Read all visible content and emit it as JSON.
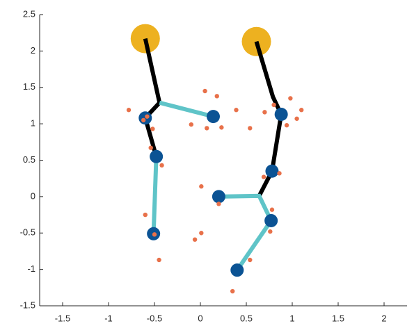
{
  "chart_data": {
    "type": "scatter",
    "xlim": [
      -1.75,
      2.25
    ],
    "ylim": [
      -1.5,
      2.5
    ],
    "xticks": [
      -1.5,
      -1,
      -0.5,
      0,
      0.5,
      1,
      1.5,
      2
    ],
    "yticks": [
      -1.5,
      -1,
      -0.5,
      0,
      0.5,
      1,
      1.5,
      2,
      2.5
    ],
    "grid": false,
    "series": [
      {
        "kind": "scatter",
        "color": "#edb120",
        "x": [
          -0.6,
          0.61
        ],
        "y": [
          2.17,
          2.13
        ]
      },
      {
        "kind": "line",
        "color": "#000000",
        "x": [
          -0.6,
          -0.445,
          -0.6,
          -0.48
        ],
        "y": [
          2.17,
          1.29,
          1.08,
          0.55
        ]
      },
      {
        "kind": "line",
        "color": "#5fc4c8",
        "x": [
          -0.445,
          0.14
        ],
        "y": [
          1.29,
          1.1
        ]
      },
      {
        "kind": "line",
        "color": "#5fc4c8",
        "x": [
          -0.48,
          -0.51
        ],
        "y": [
          0.55,
          -0.51
        ]
      },
      {
        "kind": "line",
        "color": "#000000",
        "x": [
          0.61,
          0.79,
          0.88,
          0.78,
          0.64
        ],
        "y": [
          2.13,
          1.37,
          1.13,
          0.35,
          0.01
        ]
      },
      {
        "kind": "line",
        "color": "#5fc4c8",
        "x": [
          0.2,
          0.64,
          0.77,
          0.4
        ],
        "y": [
          0.0,
          0.01,
          -0.33,
          -1.01
        ]
      },
      {
        "kind": "scatter",
        "color": "#0b5394",
        "x": [
          -0.6,
          0.14,
          -0.48,
          -0.51,
          0.88,
          0.78,
          0.2,
          0.77,
          0.4
        ],
        "y": [
          1.08,
          1.1,
          0.55,
          -0.51,
          1.13,
          0.35,
          0.0,
          -0.33,
          -1.01
        ]
      },
      {
        "kind": "scatter",
        "color": "#e8714a",
        "x": [
          -0.78,
          -0.62,
          -0.58,
          -0.52,
          -0.54,
          -0.42,
          -0.6,
          -0.5,
          -0.45,
          0.05,
          0.18,
          -0.1,
          0.07,
          0.23,
          0.39,
          0.54,
          0.7,
          0.8,
          0.98,
          0.94,
          1.05,
          1.1,
          0.01,
          0.86,
          0.69,
          0.2,
          0.78,
          0.76,
          0.01,
          -0.06,
          0.54,
          0.35
        ],
        "y": [
          1.19,
          1.05,
          1.1,
          0.93,
          0.67,
          0.43,
          -0.25,
          -0.52,
          -0.87,
          1.45,
          1.38,
          0.99,
          0.94,
          0.95,
          1.19,
          0.94,
          1.16,
          1.26,
          1.35,
          0.98,
          1.07,
          1.19,
          0.14,
          0.32,
          0.27,
          -0.1,
          -0.18,
          -0.48,
          -0.5,
          -0.59,
          -0.87,
          -1.3
        ]
      }
    ]
  }
}
